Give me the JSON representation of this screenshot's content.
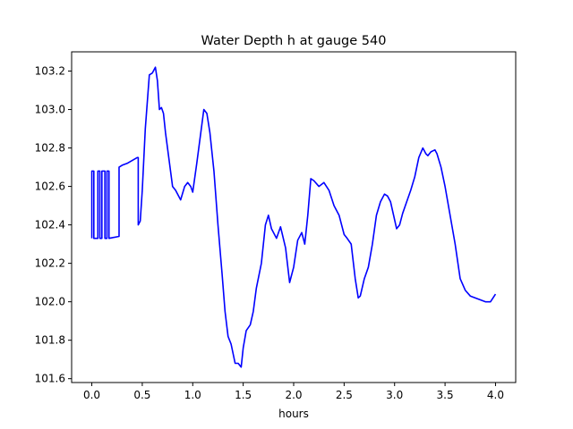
{
  "chart_data": {
    "type": "line",
    "title": "Water Depth h at gauge 540",
    "xlabel": "hours",
    "ylabel": "",
    "xlim": [
      -0.2,
      4.2
    ],
    "ylim": [
      101.58,
      103.3
    ],
    "x_ticks": [
      0.0,
      0.5,
      1.0,
      1.5,
      2.0,
      2.5,
      3.0,
      3.5,
      4.0
    ],
    "x_tick_labels": [
      "0.0",
      "0.5",
      "1.0",
      "1.5",
      "2.0",
      "2.5",
      "3.0",
      "3.5",
      "4.0"
    ],
    "y_ticks": [
      101.6,
      101.8,
      102.0,
      102.2,
      102.4,
      102.6,
      102.8,
      103.0,
      103.2
    ],
    "y_tick_labels": [
      "101.6",
      "101.8",
      "102.0",
      "102.2",
      "102.4",
      "102.6",
      "102.8",
      "103.0",
      "103.2"
    ],
    "grid": false,
    "series": [
      {
        "color": "#0000ff",
        "x": [
          0.0,
          0.0,
          0.0,
          0.02,
          0.02,
          0.06,
          0.06,
          0.08,
          0.08,
          0.1,
          0.1,
          0.13,
          0.13,
          0.15,
          0.15,
          0.17,
          0.17,
          0.27,
          0.27,
          0.3,
          0.35,
          0.4,
          0.45,
          0.46,
          0.46,
          0.48,
          0.5,
          0.53,
          0.57,
          0.6,
          0.63,
          0.65,
          0.67,
          0.69,
          0.71,
          0.73,
          0.76,
          0.8,
          0.83,
          0.88,
          0.92,
          0.95,
          0.98,
          1.0,
          1.04,
          1.08,
          1.11,
          1.14,
          1.17,
          1.21,
          1.25,
          1.29,
          1.32,
          1.35,
          1.38,
          1.42,
          1.45,
          1.48,
          1.5,
          1.53,
          1.57,
          1.6,
          1.63,
          1.68,
          1.72,
          1.75,
          1.78,
          1.83,
          1.87,
          1.92,
          1.96,
          2.0,
          2.04,
          2.08,
          2.11,
          2.14,
          2.17,
          2.2,
          2.25,
          2.3,
          2.35,
          2.4,
          2.45,
          2.5,
          2.53,
          2.57,
          2.61,
          2.64,
          2.66,
          2.7,
          2.74,
          2.78,
          2.82,
          2.86,
          2.9,
          2.93,
          2.96,
          2.99,
          3.02,
          3.05,
          3.08,
          3.12,
          3.16,
          3.2,
          3.24,
          3.28,
          3.31,
          3.33,
          3.36,
          3.4,
          3.42,
          3.46,
          3.5,
          3.55,
          3.6,
          3.65,
          3.7,
          3.75,
          3.8,
          3.85,
          3.9,
          3.95,
          4.0
        ],
        "y": [
          102.33,
          102.68,
          102.68,
          102.68,
          102.33,
          102.33,
          102.68,
          102.68,
          102.33,
          102.33,
          102.68,
          102.68,
          102.33,
          102.33,
          102.68,
          102.68,
          102.33,
          102.34,
          102.7,
          102.71,
          102.72,
          102.735,
          102.75,
          102.75,
          102.4,
          102.42,
          102.58,
          102.9,
          103.18,
          103.19,
          103.22,
          103.15,
          103.0,
          103.01,
          102.98,
          102.88,
          102.76,
          102.6,
          102.58,
          102.53,
          102.6,
          102.62,
          102.6,
          102.57,
          102.72,
          102.88,
          103.0,
          102.98,
          102.88,
          102.68,
          102.4,
          102.15,
          101.95,
          101.82,
          101.78,
          101.68,
          101.68,
          101.66,
          101.76,
          101.85,
          101.88,
          101.95,
          102.07,
          102.2,
          102.4,
          102.45,
          102.38,
          102.33,
          102.39,
          102.28,
          102.1,
          102.18,
          102.32,
          102.36,
          102.3,
          102.45,
          102.64,
          102.63,
          102.6,
          102.62,
          102.58,
          102.5,
          102.45,
          102.35,
          102.33,
          102.3,
          102.12,
          102.02,
          102.03,
          102.12,
          102.18,
          102.3,
          102.45,
          102.52,
          102.56,
          102.55,
          102.52,
          102.45,
          102.38,
          102.4,
          102.46,
          102.52,
          102.58,
          102.65,
          102.75,
          102.8,
          102.77,
          102.76,
          102.78,
          102.79,
          102.77,
          102.7,
          102.6,
          102.45,
          102.3,
          102.12,
          102.06,
          102.03,
          102.02,
          102.01,
          102.0,
          102.0,
          102.04
        ]
      }
    ]
  }
}
